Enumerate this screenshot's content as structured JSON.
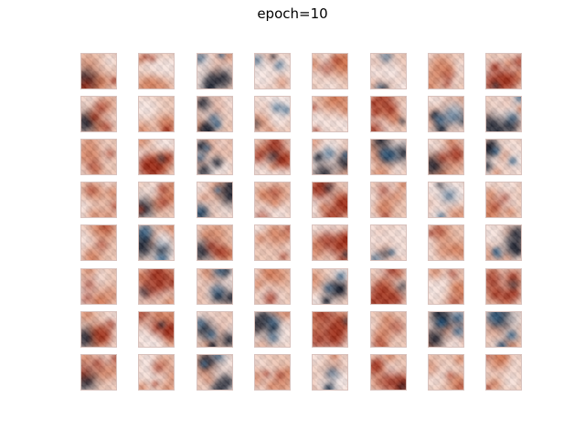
{
  "title": "epoch=10",
  "grid": {
    "rows": 8,
    "cols": 8
  },
  "palette": {
    "background": "#e6c2b2",
    "light": "#f0e4e2",
    "orange": "#c86a45",
    "red": "#9a2f1c",
    "dark": "#1c2230",
    "blue": "#2f5f86"
  },
  "tiles": [
    {
      "v": "dark-left"
    },
    {
      "v": "warm"
    },
    {
      "v": "cool-dark"
    },
    {
      "v": "cool"
    },
    {
      "v": "warm"
    },
    {
      "v": "cool"
    },
    {
      "v": "warm"
    },
    {
      "v": "red"
    },
    {
      "v": "dark-left"
    },
    {
      "v": "warm"
    },
    {
      "v": "cool-dark"
    },
    {
      "v": "cool"
    },
    {
      "v": "warm"
    },
    {
      "v": "red"
    },
    {
      "v": "blue"
    },
    {
      "v": "cool-dark"
    },
    {
      "v": "warm"
    },
    {
      "v": "red"
    },
    {
      "v": "cool-dark"
    },
    {
      "v": "red"
    },
    {
      "v": "cool-dark"
    },
    {
      "v": "cool-dark"
    },
    {
      "v": "dark-left"
    },
    {
      "v": "cool-dark"
    },
    {
      "v": "warm"
    },
    {
      "v": "dark-left"
    },
    {
      "v": "cool-dark"
    },
    {
      "v": "warm"
    },
    {
      "v": "red"
    },
    {
      "v": "warm"
    },
    {
      "v": "cool"
    },
    {
      "v": "warm"
    },
    {
      "v": "warm"
    },
    {
      "v": "blue"
    },
    {
      "v": "dark-left"
    },
    {
      "v": "warm"
    },
    {
      "v": "red"
    },
    {
      "v": "cool"
    },
    {
      "v": "warm"
    },
    {
      "v": "cool-dark"
    },
    {
      "v": "warm"
    },
    {
      "v": "red"
    },
    {
      "v": "cool-dark"
    },
    {
      "v": "warm"
    },
    {
      "v": "cool-dark"
    },
    {
      "v": "red"
    },
    {
      "v": "warm"
    },
    {
      "v": "red"
    },
    {
      "v": "dark-left"
    },
    {
      "v": "red"
    },
    {
      "v": "cool-dark"
    },
    {
      "v": "cool-dark"
    },
    {
      "v": "red"
    },
    {
      "v": "warm"
    },
    {
      "v": "blue"
    },
    {
      "v": "blue"
    },
    {
      "v": "dark-left"
    },
    {
      "v": "warm"
    },
    {
      "v": "cool-dark"
    },
    {
      "v": "warm"
    },
    {
      "v": "cool"
    },
    {
      "v": "red"
    },
    {
      "v": "warm"
    },
    {
      "v": "warm"
    }
  ]
}
